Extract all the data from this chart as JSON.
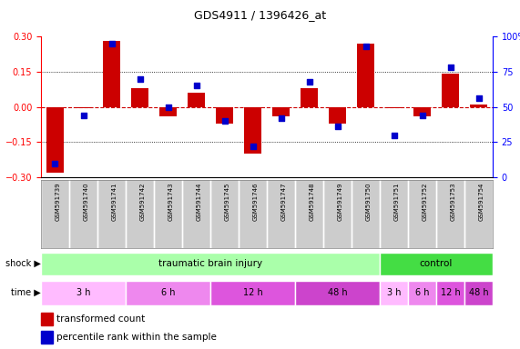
{
  "title": "GDS4911 / 1396426_at",
  "samples": [
    "GSM591739",
    "GSM591740",
    "GSM591741",
    "GSM591742",
    "GSM591743",
    "GSM591744",
    "GSM591745",
    "GSM591746",
    "GSM591747",
    "GSM591748",
    "GSM591749",
    "GSM591750",
    "GSM591751",
    "GSM591752",
    "GSM591753",
    "GSM591754"
  ],
  "red_values": [
    -0.28,
    -0.005,
    0.28,
    0.08,
    -0.04,
    0.06,
    -0.07,
    -0.2,
    -0.04,
    0.08,
    -0.07,
    0.27,
    -0.005,
    -0.04,
    0.14,
    0.01
  ],
  "blue_values_pct": [
    10,
    44,
    95,
    70,
    50,
    65,
    40,
    22,
    42,
    68,
    36,
    93,
    30,
    44,
    78,
    56
  ],
  "ylim_left": [
    -0.3,
    0.3
  ],
  "ylim_right": [
    0,
    100
  ],
  "shock_groups": [
    {
      "label": "traumatic brain injury",
      "start": 0,
      "end": 11,
      "color": "#aaffaa"
    },
    {
      "label": "control",
      "start": 12,
      "end": 15,
      "color": "#44dd44"
    }
  ],
  "time_groups": [
    {
      "label": "3 h",
      "start": 0,
      "end": 2,
      "color": "#ffbbff"
    },
    {
      "label": "6 h",
      "start": 3,
      "end": 5,
      "color": "#ee88ee"
    },
    {
      "label": "12 h",
      "start": 6,
      "end": 8,
      "color": "#dd55dd"
    },
    {
      "label": "48 h",
      "start": 9,
      "end": 11,
      "color": "#cc44cc"
    },
    {
      "label": "3 h",
      "start": 12,
      "end": 12,
      "color": "#ffbbff"
    },
    {
      "label": "6 h",
      "start": 13,
      "end": 13,
      "color": "#ee88ee"
    },
    {
      "label": "12 h",
      "start": 14,
      "end": 14,
      "color": "#dd55dd"
    },
    {
      "label": "48 h",
      "start": 15,
      "end": 15,
      "color": "#cc44cc"
    }
  ],
  "bar_color": "#cc0000",
  "dot_color": "#0000cc",
  "zero_line_color": "#cc0000",
  "bg_label": "#cccccc",
  "left_label_color": "#cccccc"
}
